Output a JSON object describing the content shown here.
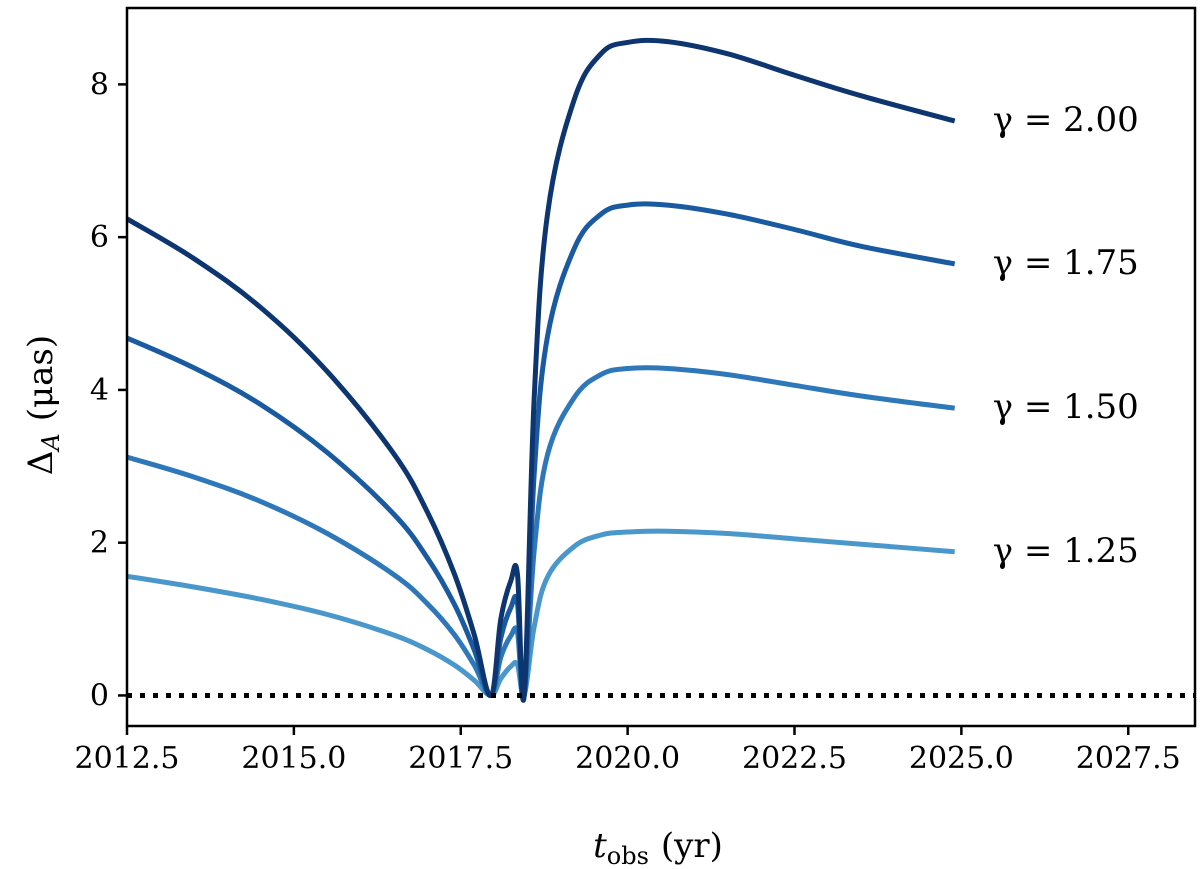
{
  "chart_data": {
    "type": "line",
    "xlabel": {
      "main": "t",
      "sub": "obs",
      "unit": "(yr)"
    },
    "ylabel": {
      "main": "Δ",
      "sub": "A",
      "unit": "(μas)"
    },
    "xlim": [
      2012.5,
      2028.5
    ],
    "ylim": [
      -0.4,
      9.0
    ],
    "xticks": [
      2012.5,
      2015.0,
      2017.5,
      2020.0,
      2022.5,
      2025.0,
      2027.5
    ],
    "xtick_labels": [
      "2012.5",
      "2015.0",
      "2017.5",
      "2020.0",
      "2022.5",
      "2025.0",
      "2027.5"
    ],
    "yticks": [
      0,
      2,
      4,
      6,
      8
    ],
    "ytick_labels": [
      "0",
      "2",
      "4",
      "6",
      "8"
    ],
    "grid": false,
    "reference_line": {
      "y": 0,
      "style": "dotted",
      "color": "#000000"
    },
    "series": [
      {
        "label": "γ = 1.25",
        "color": "#4a98cb",
        "x": [
          2012.5,
          2013.5,
          2014.5,
          2015.5,
          2016.5,
          2017.0,
          2017.4,
          2017.7,
          2017.95,
          2018.1,
          2018.25,
          2018.35,
          2018.45,
          2018.6,
          2018.8,
          2019.2,
          2019.6,
          2020.0,
          2020.6,
          2021.5,
          2022.5,
          2023.5,
          2024.9
        ],
        "y": [
          1.56,
          1.42,
          1.26,
          1.06,
          0.79,
          0.6,
          0.4,
          0.2,
          0.0,
          0.22,
          0.38,
          0.4,
          0.0,
          0.9,
          1.55,
          1.95,
          2.1,
          2.14,
          2.15,
          2.12,
          2.05,
          1.98,
          1.88
        ]
      },
      {
        "label": "γ = 1.50",
        "color": "#2e78ba",
        "x": [
          2012.5,
          2013.5,
          2014.5,
          2015.5,
          2016.5,
          2017.0,
          2017.4,
          2017.7,
          2017.95,
          2018.1,
          2018.25,
          2018.35,
          2018.45,
          2018.6,
          2018.8,
          2019.2,
          2019.6,
          2020.0,
          2020.6,
          2021.5,
          2022.5,
          2023.5,
          2024.9
        ],
        "y": [
          3.12,
          2.86,
          2.54,
          2.12,
          1.58,
          1.2,
          0.8,
          0.4,
          0.0,
          0.5,
          0.78,
          0.82,
          0.0,
          1.9,
          3.15,
          3.9,
          4.2,
          4.28,
          4.28,
          4.2,
          4.06,
          3.92,
          3.76
        ]
      },
      {
        "label": "γ = 1.75",
        "color": "#1a5aa0",
        "x": [
          2012.5,
          2013.5,
          2014.5,
          2015.5,
          2016.5,
          2017.0,
          2017.4,
          2017.7,
          2017.95,
          2018.1,
          2018.25,
          2018.35,
          2018.45,
          2018.6,
          2018.8,
          2019.2,
          2019.6,
          2020.0,
          2020.6,
          2021.5,
          2022.5,
          2023.5,
          2024.9
        ],
        "y": [
          4.68,
          4.29,
          3.81,
          3.18,
          2.37,
          1.8,
          1.2,
          0.6,
          0.0,
          0.75,
          1.15,
          1.2,
          0.0,
          2.9,
          4.7,
          5.85,
          6.3,
          6.42,
          6.42,
          6.3,
          6.1,
          5.88,
          5.65
        ]
      },
      {
        "label": "γ = 2.00",
        "color": "#0d3570",
        "x": [
          2012.5,
          2013.5,
          2014.5,
          2015.5,
          2016.5,
          2017.0,
          2017.4,
          2017.7,
          2017.95,
          2018.1,
          2018.25,
          2018.35,
          2018.45,
          2018.6,
          2018.8,
          2019.2,
          2019.6,
          2020.0,
          2020.6,
          2021.5,
          2022.5,
          2023.5,
          2024.9
        ],
        "y": [
          6.24,
          5.72,
          5.08,
          4.24,
          3.16,
          2.4,
          1.6,
          0.8,
          0.0,
          1.0,
          1.5,
          1.58,
          0.0,
          3.9,
          6.3,
          7.8,
          8.4,
          8.55,
          8.56,
          8.4,
          8.12,
          7.85,
          7.52
        ]
      }
    ]
  }
}
